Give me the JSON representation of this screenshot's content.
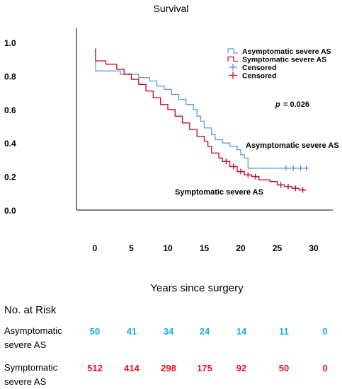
{
  "chart_data": {
    "type": "line",
    "title": "Survival",
    "xlabel": "Years since surgery",
    "ylabel": "",
    "xlim": [
      0,
      30
    ],
    "ylim": [
      0,
      1.0
    ],
    "x_ticks": [
      "0",
      "5",
      "10",
      "15",
      "20",
      "25",
      "30"
    ],
    "y_ticks": [
      "0.0",
      "0.2",
      "0.4",
      "0.6",
      "0.8",
      "1.0"
    ],
    "grid": false,
    "legend_position": "top-right",
    "legend": [
      {
        "label": "Asymptomatic severe AS",
        "color": "#5b9bd5",
        "marker": "step"
      },
      {
        "label": "Symptomatic severe AS",
        "color": "#c8102e",
        "marker": "step"
      },
      {
        "label": "Censored",
        "color": "#5b9bd5",
        "marker": "plus"
      },
      {
        "label": "Censored",
        "color": "#c8102e",
        "marker": "plus"
      }
    ],
    "annotations": {
      "p_label": "p",
      "p_value": "= 0.026",
      "series_label_asymptomatic": "Asymptomatic severe AS",
      "series_label_symptomatic": "Symptomatic severe AS"
    },
    "series": [
      {
        "name": "Asymptomatic severe AS",
        "color": "#5b9bd5",
        "steps": [
          [
            0,
            0.96
          ],
          [
            0.1,
            0.83
          ],
          [
            3.5,
            0.81
          ],
          [
            6,
            0.79
          ],
          [
            7.5,
            0.77
          ],
          [
            8.5,
            0.74
          ],
          [
            9.5,
            0.72
          ],
          [
            10.5,
            0.69
          ],
          [
            11.5,
            0.66
          ],
          [
            12.5,
            0.63
          ],
          [
            13.5,
            0.6
          ],
          [
            14,
            0.56
          ],
          [
            14.5,
            0.53
          ],
          [
            15,
            0.49
          ],
          [
            16,
            0.45
          ],
          [
            16.5,
            0.42
          ],
          [
            17.5,
            0.4
          ],
          [
            18.5,
            0.38
          ],
          [
            19.5,
            0.36
          ],
          [
            20,
            0.33
          ],
          [
            20.5,
            0.31
          ],
          [
            21,
            0.25
          ],
          [
            29,
            0.25
          ]
        ],
        "censored_x": [
          26.2,
          27.2,
          28.2,
          29.0
        ]
      },
      {
        "name": "Symptomatic severe AS",
        "color": "#c8102e",
        "steps": [
          [
            0,
            0.96
          ],
          [
            0.1,
            0.89
          ],
          [
            1.5,
            0.87
          ],
          [
            3,
            0.84
          ],
          [
            4,
            0.81
          ],
          [
            5,
            0.78
          ],
          [
            6,
            0.75
          ],
          [
            7,
            0.71
          ],
          [
            8,
            0.67
          ],
          [
            9,
            0.63
          ],
          [
            10,
            0.6
          ],
          [
            11,
            0.56
          ],
          [
            12,
            0.52
          ],
          [
            13,
            0.48
          ],
          [
            14,
            0.44
          ],
          [
            15,
            0.41
          ],
          [
            15.5,
            0.38
          ],
          [
            16,
            0.34
          ],
          [
            17,
            0.31
          ],
          [
            17.5,
            0.29
          ],
          [
            18.5,
            0.26
          ],
          [
            19.5,
            0.23
          ],
          [
            20.5,
            0.21
          ],
          [
            21.5,
            0.2
          ],
          [
            22.5,
            0.18
          ],
          [
            24,
            0.17
          ],
          [
            25,
            0.15
          ],
          [
            26,
            0.14
          ],
          [
            27,
            0.13
          ],
          [
            28,
            0.12
          ],
          [
            29,
            0.12
          ]
        ],
        "censored_x": [
          18,
          19,
          20,
          21,
          22,
          25.5,
          26.5,
          27.5,
          28.5
        ]
      }
    ]
  },
  "risk_table": {
    "heading": "No. at Risk",
    "rows": [
      {
        "label_line1": "Asymptomatic",
        "label_line2": "severe AS",
        "values": [
          "50",
          "41",
          "34",
          "24",
          "14",
          "11",
          "0"
        ]
      },
      {
        "label_line1": "Symptomatic",
        "label_line2": "severe AS",
        "values": [
          "512",
          "414",
          "298",
          "175",
          "92",
          "50",
          "0"
        ]
      }
    ]
  }
}
